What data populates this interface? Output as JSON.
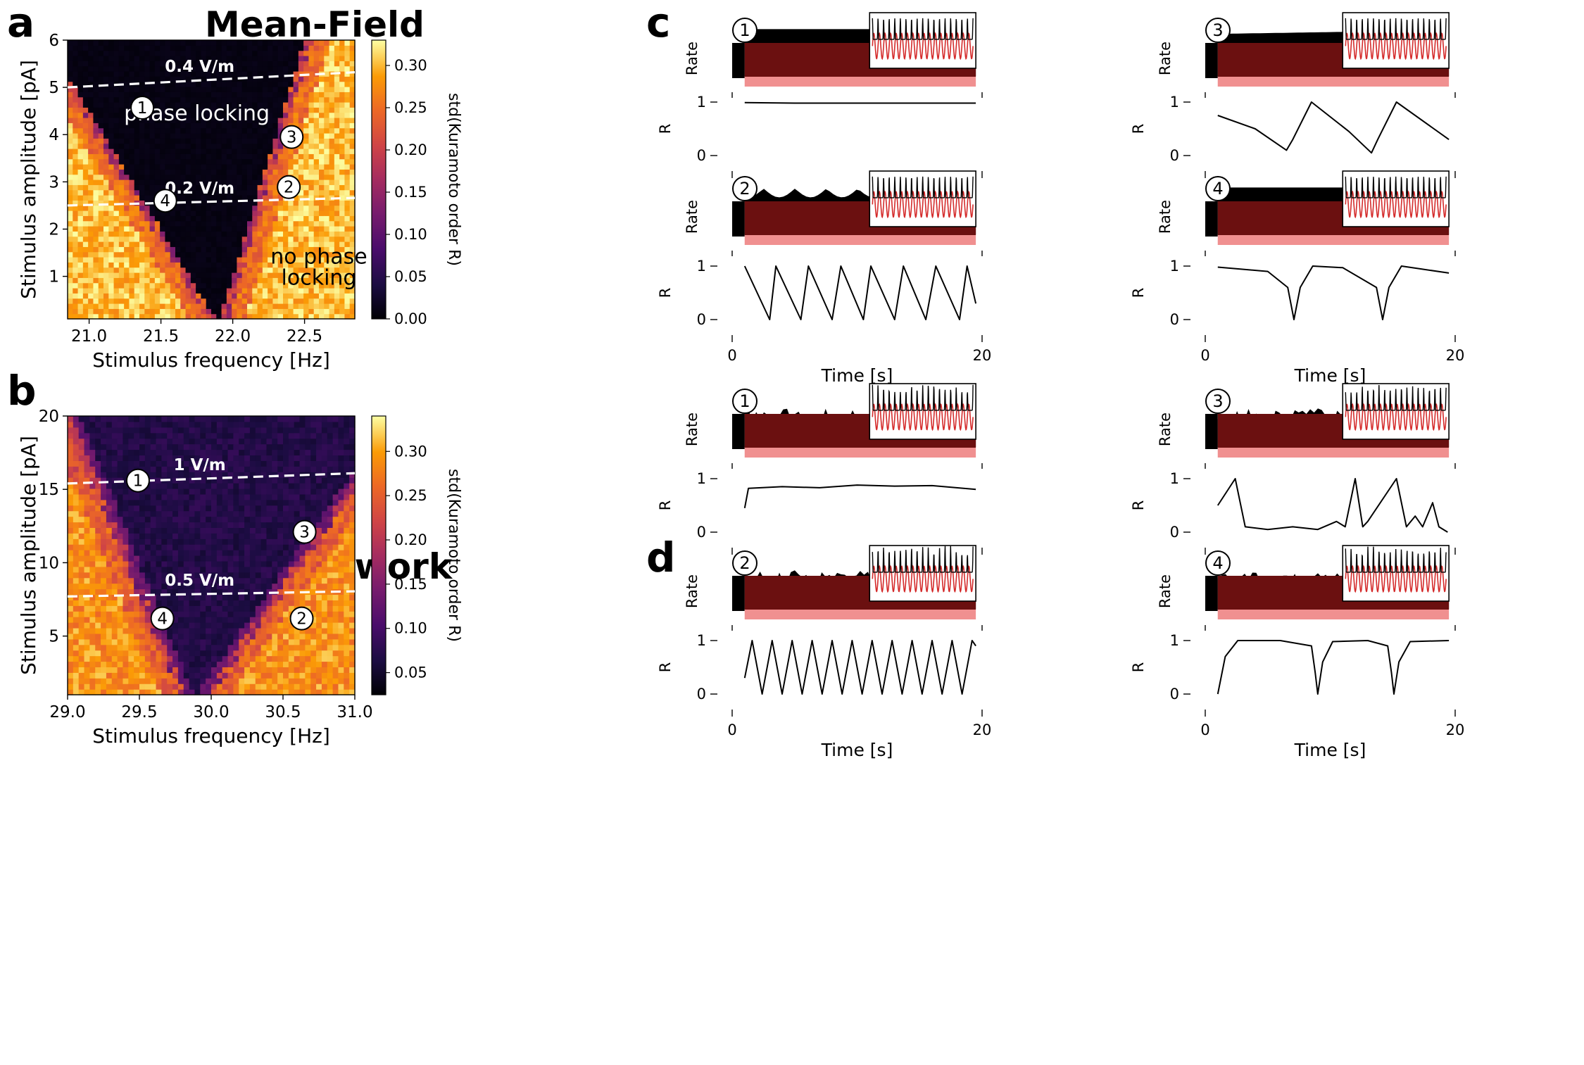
{
  "panel_letters": [
    "a",
    "b",
    "c",
    "d"
  ],
  "chart_data": [
    {
      "id": "a",
      "type": "heatmap",
      "title": "Mean-Field",
      "xlabel": "Stimulus frequency [Hz]",
      "ylabel": "Stimulus amplitude [pA]",
      "xlim": [
        20.85,
        22.85
      ],
      "ylim": [
        0.1,
        6.0
      ],
      "xticks": [
        21.0,
        21.5,
        22.0,
        22.5
      ],
      "xtick_labels": [
        "21.0",
        "21.5",
        "22.0",
        "22.5"
      ],
      "yticks": [
        1,
        2,
        3,
        4,
        5,
        6
      ],
      "ytick_labels": [
        "1",
        "2",
        "3",
        "4",
        "5",
        "6"
      ],
      "colorbar": {
        "label": "std(Kuramoto order R)",
        "range": [
          0.0,
          0.33
        ],
        "ticks": [
          0.0,
          0.05,
          0.1,
          0.15,
          0.2,
          0.25,
          0.3
        ],
        "tick_labels": [
          "0.00",
          "0.05",
          "0.10",
          "0.15",
          "0.20",
          "0.25",
          "0.30"
        ]
      },
      "locking_wedge": {
        "center_hz": 21.9,
        "left_slope_hz_per_pA": 0.2,
        "right_slope_hz_per_pA": 0.1,
        "low_value": 0.01,
        "high_value": 0.31
      },
      "field_lines": [
        {
          "label": "0.4 V/m",
          "x": [
            20.85,
            22.85
          ],
          "y": [
            5.0,
            5.32
          ]
        },
        {
          "label": "0.2 V/m",
          "x": [
            20.85,
            22.85
          ],
          "y": [
            2.5,
            2.66
          ]
        }
      ],
      "region_labels": [
        {
          "text": "phase locking",
          "x": 21.75,
          "y": 4.3,
          "color": "#ffffff"
        },
        {
          "text": "no phase",
          "x": 22.6,
          "y": 1.27,
          "color": "#000000"
        },
        {
          "text": "locking",
          "x": 22.6,
          "y": 0.82,
          "color": "#000000"
        }
      ],
      "markers": [
        {
          "label": "1",
          "x": 21.37,
          "y": 4.57
        },
        {
          "label": "2",
          "x": 22.39,
          "y": 2.89
        },
        {
          "label": "3",
          "x": 22.41,
          "y": 3.95
        },
        {
          "label": "4",
          "x": 21.53,
          "y": 2.6
        }
      ]
    },
    {
      "id": "b",
      "type": "heatmap",
      "title": "AdEx network",
      "xlabel": "Stimulus frequency [Hz]",
      "ylabel": "Stimulus amplitude [pA]",
      "xlim": [
        29.0,
        31.0
      ],
      "ylim": [
        1.0,
        20.0
      ],
      "xticks": [
        29.0,
        29.5,
        30.0,
        30.5,
        31.0
      ],
      "xtick_labels": [
        "29.0",
        "29.5",
        "30.0",
        "30.5",
        "31.0"
      ],
      "yticks": [
        5,
        10,
        15,
        20
      ],
      "ytick_labels": [
        "5",
        "10",
        "15",
        "20"
      ],
      "colorbar": {
        "label": "std(Kuramoto order R)",
        "range": [
          0.025,
          0.34
        ],
        "ticks": [
          0.05,
          0.1,
          0.15,
          0.2,
          0.25,
          0.3
        ],
        "tick_labels": [
          "0.05",
          "0.10",
          "0.15",
          "0.20",
          "0.25",
          "0.30"
        ]
      },
      "locking_wedge": {
        "center_hz": 29.87,
        "left_slope_hz_per_pA": 0.042,
        "right_slope_hz_per_pA": 0.072,
        "low_value": 0.07,
        "high_value": 0.3
      },
      "field_lines": [
        {
          "label": "1 V/m",
          "x": [
            29.0,
            31.0
          ],
          "y": [
            15.4,
            16.1
          ]
        },
        {
          "label": "0.5 V/m",
          "x": [
            29.0,
            31.0
          ],
          "y": [
            7.7,
            8.05
          ]
        }
      ],
      "region_labels": [],
      "markers": [
        {
          "label": "1",
          "x": 29.49,
          "y": 15.6
        },
        {
          "label": "2",
          "x": 30.63,
          "y": 6.2
        },
        {
          "label": "3",
          "x": 30.65,
          "y": 12.1
        },
        {
          "label": "4",
          "x": 29.66,
          "y": 6.2
        }
      ]
    },
    {
      "id": "c",
      "type": "line",
      "title": "",
      "xlabel": "Time [s]",
      "xlim": [
        0,
        20
      ],
      "xticks": [
        0,
        20
      ],
      "subplots": [
        {
          "label": "1",
          "rate_ylabel": "Rate",
          "r_ylabel": "R",
          "r_ylim": [
            0,
            1
          ],
          "r_yticks": [
            0,
            1
          ],
          "r_t": [
            1,
            5,
            10,
            15,
            19.5
          ],
          "r": [
            0.99,
            0.98,
            0.98,
            0.98,
            0.98
          ]
        },
        {
          "label": "2",
          "rate_ylabel": "Rate",
          "r_ylabel": "R",
          "r_ylim": [
            0,
            1
          ],
          "r_yticks": [
            0,
            1
          ],
          "r_t": [
            1,
            3.0,
            3.5,
            5.5,
            6.1,
            8.0,
            8.7,
            10.5,
            11.1,
            13.0,
            13.7,
            15.5,
            16.3,
            18.2,
            18.8,
            19.5
          ],
          "r": [
            1.0,
            0.0,
            1.0,
            0.0,
            1.0,
            0.0,
            1.0,
            0.0,
            1.0,
            0.0,
            1.0,
            0.0,
            1.0,
            0.0,
            1.0,
            0.3
          ]
        },
        {
          "label": "3",
          "rate_ylabel": "Rate",
          "r_ylabel": "R",
          "r_ylim": [
            0,
            1
          ],
          "r_yticks": [
            0,
            1
          ],
          "r_t": [
            1,
            4,
            6.5,
            7.0,
            8.5,
            11.5,
            13.3,
            13.8,
            15.3,
            19.5
          ],
          "r": [
            0.75,
            0.5,
            0.1,
            0.3,
            1.0,
            0.45,
            0.05,
            0.3,
            1.0,
            0.3
          ]
        },
        {
          "label": "4",
          "rate_ylabel": "Rate",
          "r_ylabel": "R",
          "r_ylim": [
            0,
            1
          ],
          "r_yticks": [
            0,
            1
          ],
          "r_t": [
            1,
            5,
            6.6,
            7.1,
            7.6,
            8.6,
            11,
            13.7,
            14.2,
            14.7,
            15.7,
            19.5
          ],
          "r": [
            0.98,
            0.9,
            0.6,
            0.0,
            0.6,
            1.0,
            0.97,
            0.6,
            0.0,
            0.6,
            1.0,
            0.87
          ]
        }
      ]
    },
    {
      "id": "d",
      "type": "line",
      "title": "",
      "xlabel": "Time [s]",
      "xlim": [
        0,
        20
      ],
      "xticks": [
        0,
        20
      ],
      "subplots": [
        {
          "label": "1",
          "rate_ylabel": "Rate",
          "r_ylabel": "R",
          "r_ylim": [
            0,
            1
          ],
          "r_yticks": [
            0,
            1
          ],
          "r_t": [
            1,
            1.3,
            4,
            7,
            10,
            13,
            16,
            19.5
          ],
          "r": [
            0.45,
            0.82,
            0.85,
            0.83,
            0.88,
            0.86,
            0.87,
            0.8
          ]
        },
        {
          "label": "2",
          "rate_ylabel": "Rate",
          "r_ylabel": "R",
          "r_ylim": [
            0,
            1
          ],
          "r_yticks": [
            0,
            1
          ],
          "r_t": [
            1,
            1.6,
            2.4,
            3.2,
            4.0,
            4.8,
            5.6,
            6.4,
            7.2,
            8.0,
            8.8,
            9.6,
            10.4,
            11.2,
            12.0,
            12.8,
            13.6,
            14.4,
            15.2,
            16.0,
            16.8,
            17.6,
            18.4,
            19.2,
            19.5
          ],
          "r": [
            0.3,
            1.0,
            0.0,
            1.0,
            0.0,
            1.0,
            0.0,
            1.0,
            0.0,
            1.0,
            0.0,
            1.0,
            0.0,
            1.0,
            0.0,
            1.0,
            0.0,
            1.0,
            0.0,
            1.0,
            0.0,
            1.0,
            0.0,
            1.0,
            0.9
          ]
        },
        {
          "label": "3",
          "rate_ylabel": "Rate",
          "r_ylabel": "R",
          "r_ylim": [
            0,
            1
          ],
          "r_yticks": [
            0,
            1
          ],
          "r_t": [
            1,
            2.4,
            3.2,
            5,
            7,
            9,
            10.5,
            11.2,
            12.0,
            12.6,
            13.0,
            15.3,
            16.1,
            16.8,
            17.4,
            18.2,
            18.7,
            19.4
          ],
          "r": [
            0.5,
            1.0,
            0.1,
            0.05,
            0.1,
            0.05,
            0.2,
            0.1,
            1.0,
            0.1,
            0.2,
            1.0,
            0.1,
            0.3,
            0.1,
            0.55,
            0.1,
            0.0
          ]
        },
        {
          "label": "4",
          "rate_ylabel": "Rate",
          "r_ylabel": "R",
          "r_ylim": [
            0,
            1
          ],
          "r_yticks": [
            0,
            1
          ],
          "r_t": [
            1,
            1.6,
            2.6,
            6,
            8.5,
            8.8,
            9.0,
            9.4,
            10.2,
            13,
            14.6,
            14.9,
            15.1,
            15.5,
            16.4,
            19.5
          ],
          "r": [
            0.0,
            0.7,
            1.0,
            1.0,
            0.9,
            0.4,
            0.0,
            0.6,
            0.98,
            1.0,
            0.9,
            0.4,
            0.0,
            0.6,
            0.98,
            1.0
          ]
        }
      ]
    }
  ]
}
